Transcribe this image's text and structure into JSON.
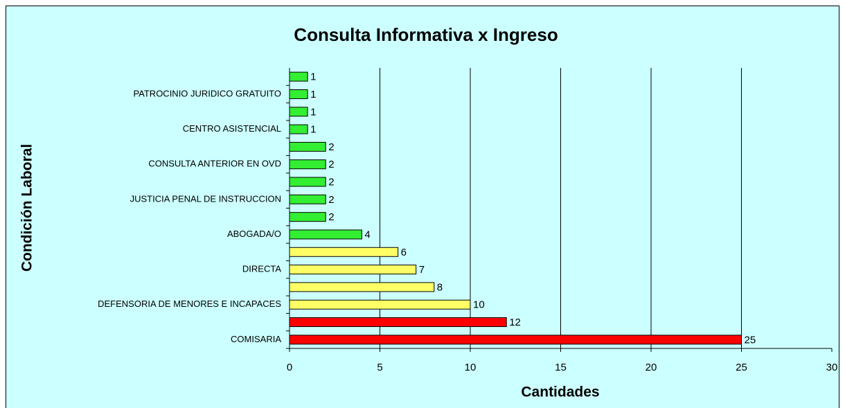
{
  "chart_data": {
    "type": "barh",
    "title": "Consulta Informativa x Ingreso",
    "xlabel": "Cantidades",
    "ylabel": "Condición Laboral",
    "categories": [
      "COMISARIA",
      null,
      "DEFENSORIA DE MENORES E INCAPACES",
      null,
      "DIRECTA",
      null,
      "ABOGADA/O",
      null,
      "JUSTICIA PENAL DE INSTRUCCION",
      null,
      "CONSULTA ANTERIOR EN OVD",
      null,
      "CENTRO ASISTENCIAL",
      null,
      "PATROCINIO JURIDICO GRATUITO",
      null
    ],
    "values": [
      25,
      12,
      10,
      8,
      7,
      6,
      4,
      2,
      2,
      2,
      2,
      2,
      1,
      1,
      1,
      1
    ],
    "colors": [
      "#ff0000",
      "#ff0000",
      "#ffff66",
      "#ffff66",
      "#ffff66",
      "#ffff66",
      "#33ee33",
      "#33ee33",
      "#33ee33",
      "#33ee33",
      "#33ee33",
      "#33ee33",
      "#33ee33",
      "#33ee33",
      "#33ee33",
      "#33ee33"
    ],
    "xlim": [
      0,
      30
    ],
    "xticks": [
      0,
      5,
      10,
      15,
      20,
      25,
      30
    ],
    "grid": true,
    "background": "#ccffff"
  }
}
